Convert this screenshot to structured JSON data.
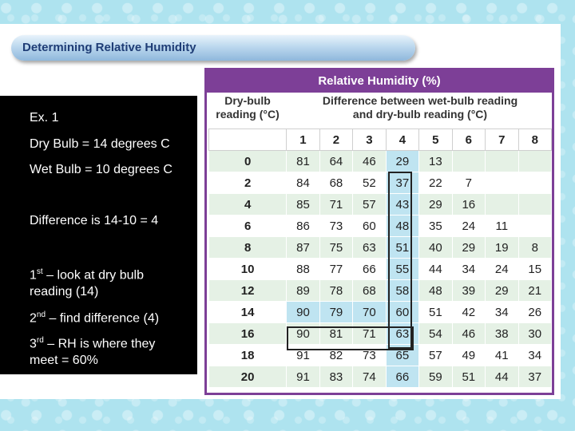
{
  "banner": {
    "title": "Determining Relative Humidity"
  },
  "textbox": {
    "ex": "Ex. 1",
    "dry": "Dry Bulb = 14 degrees C",
    "wet": "Wet Bulb = 10 degrees C",
    "difference": "Difference is 14-10 = 4",
    "step1_num": "1",
    "step1_sup": "st",
    "step1_text": " – look at dry bulb",
    "step1_text2": "reading (14)",
    "step2_num": "2",
    "step2_sup": "nd",
    "step2_text": " – find difference (4)",
    "step3_num": "3",
    "step3_sup": "rd",
    "step3_text": " – RH is where they",
    "step3_text2": "meet = 60%"
  },
  "table": {
    "title": "Relative Humidity (%)",
    "dry_header_1": "Dry-bulb",
    "dry_header_2": "reading (°C)",
    "diff_header_1": "Difference between wet-bulb reading",
    "diff_header_2": "and dry-bulb reading (°C)",
    "columns": [
      "1",
      "2",
      "3",
      "4",
      "5",
      "6",
      "7",
      "8"
    ],
    "rows": [
      {
        "dry": "0",
        "values": [
          "81",
          "64",
          "46",
          "29",
          "13",
          "",
          "",
          ""
        ]
      },
      {
        "dry": "2",
        "values": [
          "84",
          "68",
          "52",
          "37",
          "22",
          "7",
          "",
          ""
        ]
      },
      {
        "dry": "4",
        "values": [
          "85",
          "71",
          "57",
          "43",
          "29",
          "16",
          "",
          ""
        ]
      },
      {
        "dry": "6",
        "values": [
          "86",
          "73",
          "60",
          "48",
          "35",
          "24",
          "11",
          ""
        ]
      },
      {
        "dry": "8",
        "values": [
          "87",
          "75",
          "63",
          "51",
          "40",
          "29",
          "19",
          "8"
        ]
      },
      {
        "dry": "10",
        "values": [
          "88",
          "77",
          "66",
          "55",
          "44",
          "34",
          "24",
          "15"
        ]
      },
      {
        "dry": "12",
        "values": [
          "89",
          "78",
          "68",
          "58",
          "48",
          "39",
          "29",
          "21"
        ]
      },
      {
        "dry": "14",
        "values": [
          "90",
          "79",
          "70",
          "60",
          "51",
          "42",
          "34",
          "26"
        ]
      },
      {
        "dry": "16",
        "values": [
          "90",
          "81",
          "71",
          "63",
          "54",
          "46",
          "38",
          "30"
        ]
      },
      {
        "dry": "18",
        "values": [
          "91",
          "82",
          "73",
          "65",
          "57",
          "49",
          "41",
          "34"
        ]
      },
      {
        "dry": "20",
        "values": [
          "91",
          "83",
          "74",
          "66",
          "59",
          "51",
          "44",
          "37"
        ]
      }
    ]
  },
  "colors": {
    "header_purple": "#7d3f97",
    "stripe_green": "#e5f1e5",
    "highlight_blue": "#bfe4f1",
    "banner_text": "#1f3d76"
  }
}
